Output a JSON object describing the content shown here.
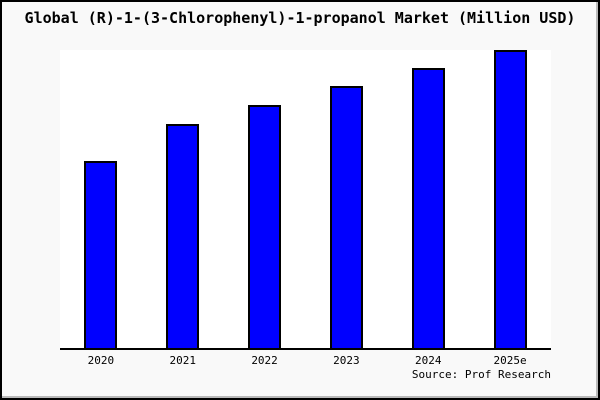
{
  "title": "Global (R)-1-(3-Chlorophenyl)-1-propanol Market (Million USD)",
  "source": "Source: Prof Research",
  "colors": {
    "bar_fill": "#0000ff",
    "bar_border": "#000000",
    "axis": "#000000",
    "figure_bg": "#f9f9f9",
    "plot_bg": "#ffffff",
    "text": "#000000"
  },
  "chart_data": {
    "type": "bar",
    "categories": [
      "2020",
      "2021",
      "2022",
      "2023",
      "2024",
      "2025e"
    ],
    "values": [
      62.7,
      75.3,
      81.4,
      87.8,
      93.8,
      100
    ],
    "title": "Global (R)-1-(3-Chlorophenyl)-1-propanol Market (Million USD)",
    "xlabel": "",
    "ylabel": "",
    "ylim": [
      0,
      100
    ],
    "grid": false,
    "legend": false,
    "value_basis": "relative bar heights, tallest bar (2025e) = 100; no numeric y-axis shown in chart"
  }
}
